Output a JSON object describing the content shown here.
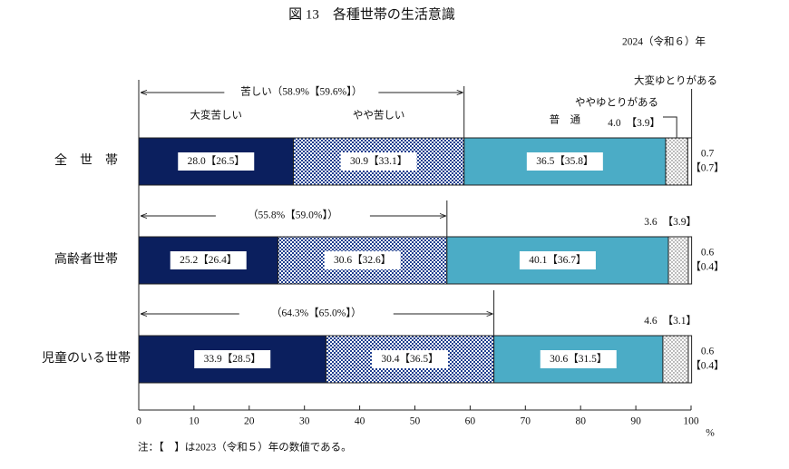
{
  "chart_data": {
    "type": "stacked-bar-horizontal",
    "title": "図 13　各種世帯の生活意識",
    "subtitle": "2024（令和６）年",
    "note": "注：【　】は2023（令和５）年の数値である。",
    "x_unit": "%",
    "categories": [
      "全　世　帯",
      "高齢者世帯",
      "児童のいる世帯"
    ],
    "series": [
      {
        "name": "大変苦しい",
        "color": "#0b1f5e",
        "values": [
          28.0,
          25.2,
          33.9
        ],
        "value_labels": [
          "28.0",
          "25.2",
          "33.9"
        ],
        "previous_labels": [
          "【26.5】",
          "【26.4】",
          "【28.5】"
        ]
      },
      {
        "name": "やや苦しい",
        "color": "#1f3f8f",
        "pattern": "checker",
        "values": [
          30.9,
          30.6,
          30.4
        ],
        "value_labels": [
          "30.9",
          "30.6",
          "30.4"
        ],
        "previous_labels": [
          "【33.1】",
          "【32.6】",
          "【36.5】"
        ]
      },
      {
        "name": "普　通",
        "color": "#4bacc6",
        "values": [
          36.5,
          40.1,
          30.6
        ],
        "value_labels": [
          "36.5",
          "40.1",
          "30.6"
        ],
        "previous_labels": [
          "【35.8】",
          "【36.7】",
          "【31.5】"
        ]
      },
      {
        "name": "ややゆとりがある",
        "color": "#555555",
        "pattern": "dots",
        "values": [
          4.0,
          3.6,
          4.6
        ],
        "value_labels": [
          "4.0",
          "3.6",
          "4.6"
        ],
        "previous_labels": [
          "【3.9】",
          "【3.9】",
          "【3.1】"
        ]
      },
      {
        "name": "大変ゆとりがある",
        "color": "#ffffff",
        "values": [
          0.7,
          0.6,
          0.6
        ],
        "value_labels": [
          "0.7",
          "0.6",
          "0.6"
        ],
        "previous_labels": [
          "【0.7】",
          "【0.4】",
          "【0.4】"
        ]
      }
    ],
    "annotations": [
      {
        "label": "苦しい（58.9%【59.6%】）"
      },
      {
        "label": "（55.8%【59.0%】）"
      },
      {
        "label": "（64.3%【65.0%】）"
      }
    ],
    "xlim": [
      0,
      100
    ],
    "xticks": [
      0,
      10,
      20,
      30,
      40,
      50,
      60,
      70,
      80,
      90,
      100
    ]
  }
}
